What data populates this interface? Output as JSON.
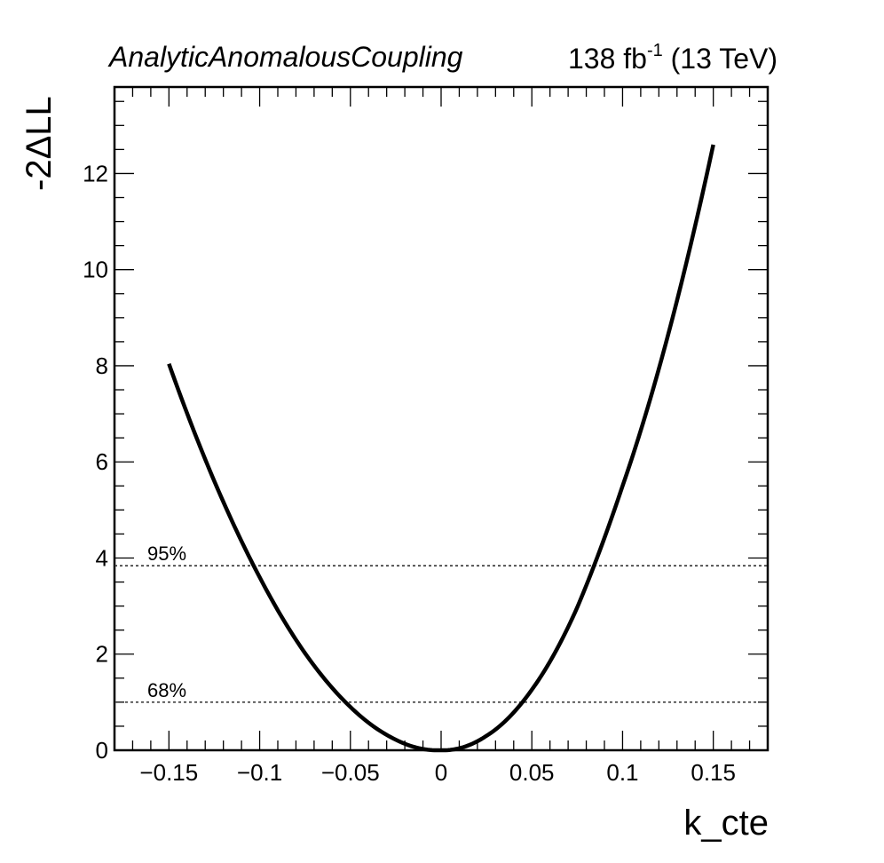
{
  "header": {
    "left_text": "AnalyticAnomalousCoupling",
    "lumi_value": "138 fb",
    "lumi_exponent": "-1",
    "energy": "(13 TeV)"
  },
  "chart_data": {
    "type": "line",
    "xlabel": "k_cte",
    "ylabel": "-2ΔLL",
    "xlim": [
      -0.18,
      0.18
    ],
    "ylim": [
      0,
      13.8
    ],
    "x_ticks": [
      -0.15,
      -0.1,
      -0.05,
      0,
      0.05,
      0.1,
      0.15
    ],
    "x_tick_labels": [
      "−0.15",
      "−0.1",
      "−0.05",
      "0",
      "0.05",
      "0.1",
      "0.15"
    ],
    "y_ticks": [
      0,
      2,
      4,
      6,
      8,
      10,
      12
    ],
    "y_tick_labels": [
      "0",
      "2",
      "4",
      "6",
      "8",
      "10",
      "12"
    ],
    "grid": false,
    "series": [
      {
        "color": "#000000",
        "x": [
          -0.15,
          -0.125,
          -0.1,
          -0.075,
          -0.05,
          -0.025,
          0,
          0.025,
          0.05,
          0.075,
          0.1,
          0.125,
          0.15
        ],
        "y": [
          8.04,
          5.6,
          3.6,
          2.02,
          0.9,
          0.22,
          0.0,
          0.3,
          1.26,
          2.97,
          5.5,
          8.63,
          12.6
        ]
      }
    ],
    "reference_lines": [
      {
        "label": "95%",
        "y": 3.84,
        "style": "dotted"
      },
      {
        "label": "68%",
        "y": 1.0,
        "style": "dotted"
      }
    ]
  }
}
